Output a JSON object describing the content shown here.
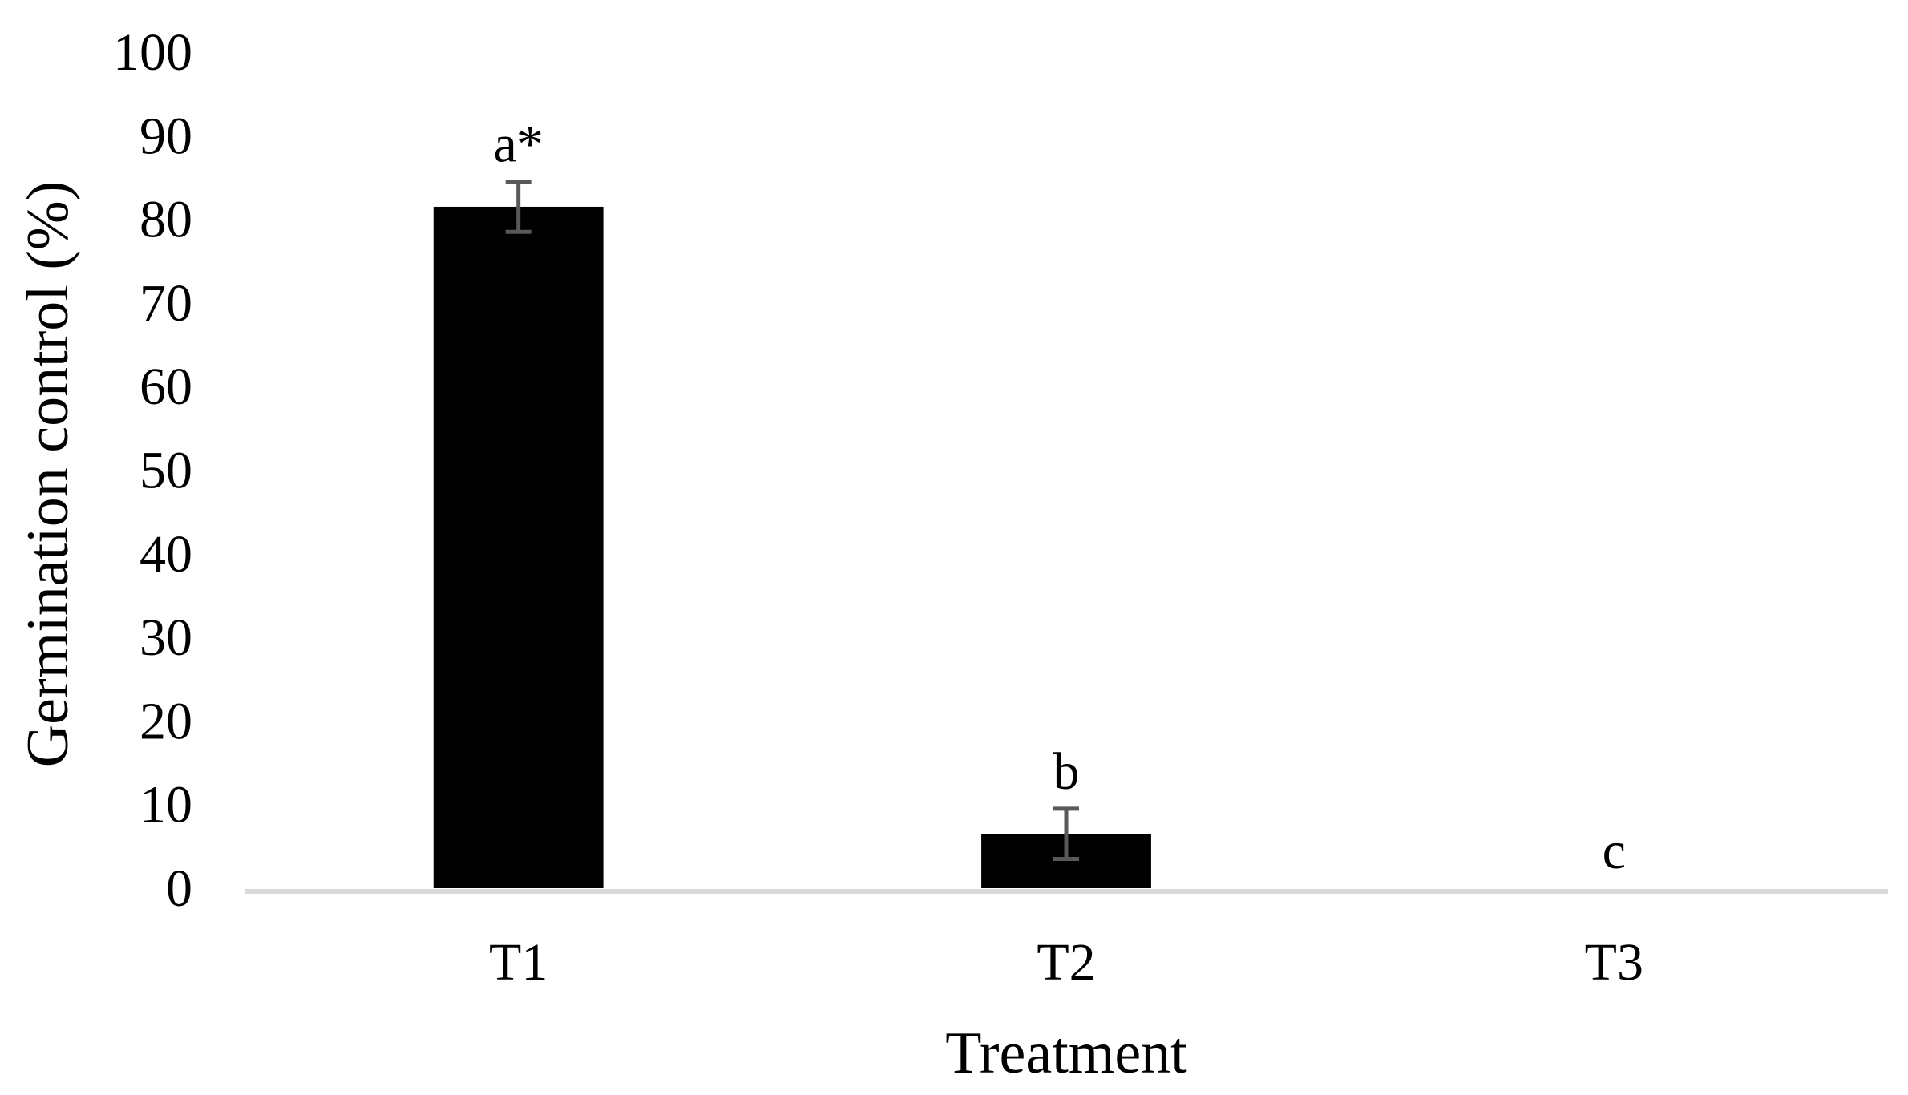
{
  "chart_data": {
    "type": "bar",
    "categories": [
      "T1",
      "T2",
      "T3"
    ],
    "values": [
      81.5,
      6.5,
      0
    ],
    "errors": [
      3,
      3,
      0
    ],
    "significance_labels": [
      "a*",
      "b",
      "c"
    ],
    "xlabel": "Treatment",
    "ylabel": "Germination control (%)",
    "ylim": [
      0,
      100
    ],
    "yticks": [
      0,
      10,
      20,
      30,
      40,
      50,
      60,
      70,
      80,
      90,
      100
    ],
    "grid": false,
    "legend": "none",
    "colors": {
      "bar": "#000000",
      "error_bar": "#595959",
      "axis": "#d9d9d9"
    }
  }
}
